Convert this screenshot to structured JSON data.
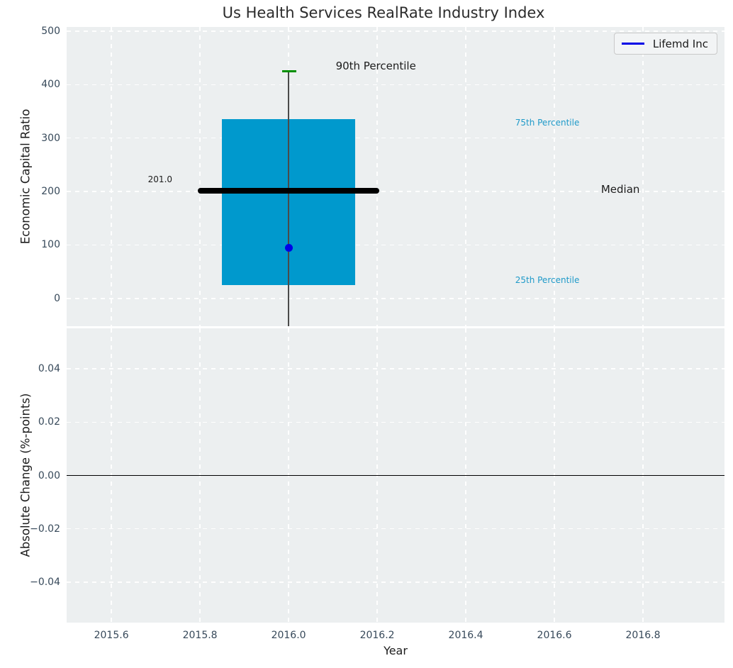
{
  "legend": {
    "label": "Lifemd Inc",
    "line_color": "#0000e6"
  },
  "colors": {
    "figure_background": "#ffffff",
    "axes_background": "#eceff0",
    "grid": "#ffffff",
    "tick_label": "#37495a",
    "title": "#2b2b2b",
    "box_fill": "#0099cd",
    "percentile_cap": "#008f00",
    "median_line": "#000000",
    "company_point": "#0000e6"
  },
  "chart_data": {
    "type": "boxplot",
    "title": "Us Health Services RealRate Industry Index",
    "panels": [
      {
        "name": "economic-capital-ratio",
        "ylabel": "Economic Capital Ratio",
        "xlim": [
          2015.499,
          2016.984
        ],
        "ylim": [
          -52,
          508
        ],
        "show_xticklabels": false,
        "xticks": [
          {
            "v": 2015.6,
            "label": "2015.6"
          },
          {
            "v": 2015.8,
            "label": "2015.8"
          },
          {
            "v": 2016.0,
            "label": "2016.0"
          },
          {
            "v": 2016.2,
            "label": "2016.2"
          },
          {
            "v": 2016.4,
            "label": "2016.4"
          },
          {
            "v": 2016.6,
            "label": "2016.6"
          },
          {
            "v": 2016.8,
            "label": "2016.8"
          }
        ],
        "yticks": [
          {
            "v": 0,
            "label": "0"
          },
          {
            "v": 100,
            "label": "100"
          },
          {
            "v": 200,
            "label": "200"
          },
          {
            "v": 300,
            "label": "300"
          },
          {
            "v": 400,
            "label": "400"
          },
          {
            "v": 500,
            "label": "500"
          }
        ],
        "box": {
          "x_center": 2016.0,
          "x_left": 2015.85,
          "x_right": 2016.15,
          "median_x_left": 2015.795,
          "median_x_right": 2016.205,
          "cap_x_left": 2015.985,
          "cap_x_right": 2016.017,
          "p25": 25,
          "median": 201,
          "p75": 335,
          "p90": 425,
          "whisker_extends_below_axis": true,
          "color": "#0099cd",
          "cap_color": "#008f00",
          "median_color": "#000000"
        },
        "point": {
          "label": "Lifemd Inc",
          "x": 2016.0,
          "y": 95,
          "color": "#0000e6"
        },
        "annotations": [
          {
            "text": "90th Percentile",
            "x": 2016.197,
            "y": 435,
            "color": "#1c1c1c",
            "size": 15
          },
          {
            "text": "75th Percentile",
            "x": 2016.584,
            "y": 329,
            "color": "#1f9ac9",
            "size": 12
          },
          {
            "text": "Median",
            "x": 2016.749,
            "y": 204,
            "color": "#1c1c1c",
            "size": 15
          },
          {
            "text": "25th Percentile",
            "x": 2016.584,
            "y": 34,
            "color": "#1f9ac9",
            "size": 12
          },
          {
            "text": "201.0",
            "x": 2015.71,
            "y": 223,
            "color": "#1c1c1c",
            "size": 12
          }
        ]
      },
      {
        "name": "absolute-change",
        "ylabel": "Absolute Change (%-points)",
        "xlabel": "Year",
        "xlim": [
          2015.499,
          2016.984
        ],
        "ylim": [
          -0.0552,
          0.0552
        ],
        "show_xticklabels": true,
        "xticks": [
          {
            "v": 2015.6,
            "label": "2015.6"
          },
          {
            "v": 2015.8,
            "label": "2015.8"
          },
          {
            "v": 2016.0,
            "label": "2016.0"
          },
          {
            "v": 2016.2,
            "label": "2016.2"
          },
          {
            "v": 2016.4,
            "label": "2016.4"
          },
          {
            "v": 2016.6,
            "label": "2016.6"
          },
          {
            "v": 2016.8,
            "label": "2016.8"
          }
        ],
        "yticks": [
          {
            "v": 0.04,
            "label": "0.04"
          },
          {
            "v": 0.02,
            "label": "0.02"
          },
          {
            "v": 0.0,
            "label": "0.00"
          },
          {
            "v": -0.02,
            "label": "−0.02"
          },
          {
            "v": -0.04,
            "label": "−0.04"
          }
        ],
        "zero_line": 0.0
      }
    ]
  }
}
